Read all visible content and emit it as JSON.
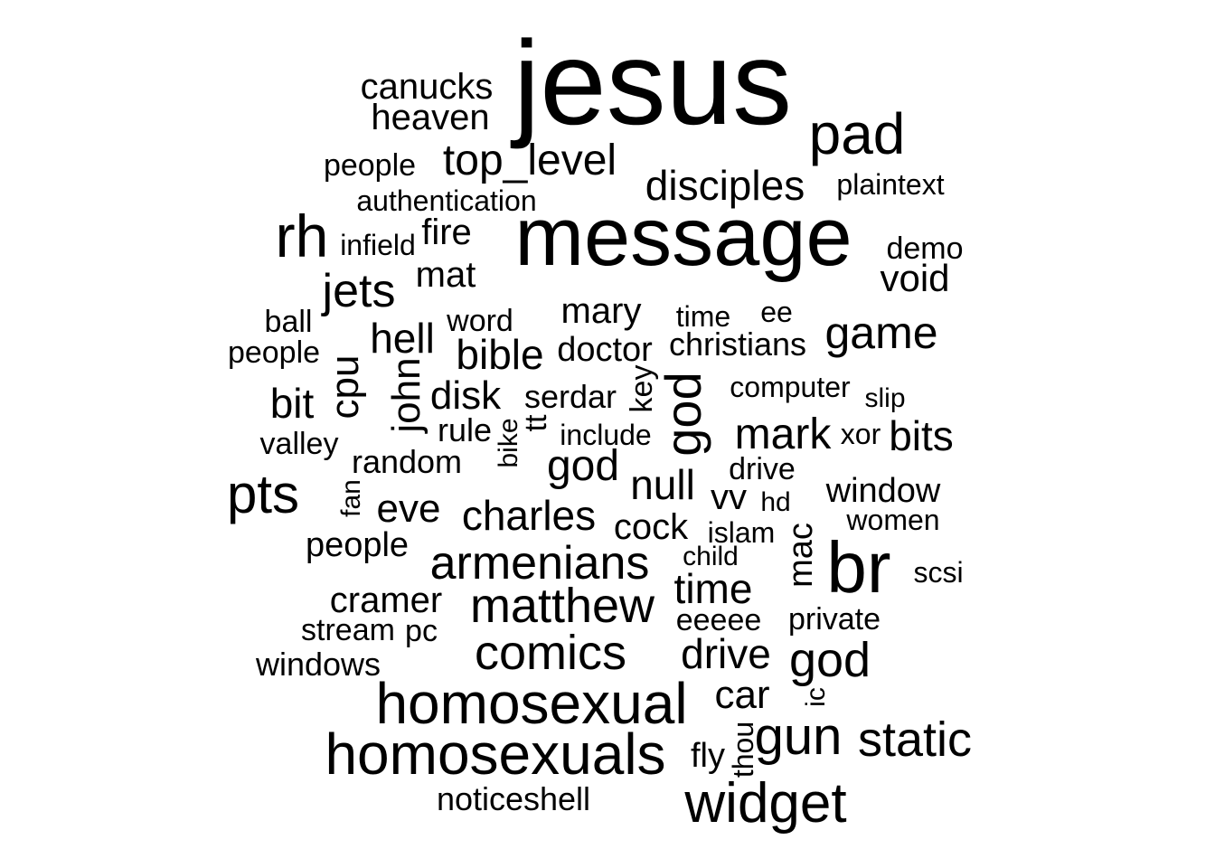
{
  "colors": {
    "background": "#ffffff",
    "text": "#000000"
  },
  "words": [
    "jesus",
    "message",
    "pad",
    "canucks",
    "heaven",
    "people",
    "top_level",
    "disciples",
    "plaintext",
    "authentication",
    "rh",
    "fire",
    "infield",
    "demo",
    "void",
    "mat",
    "jets",
    "mary",
    "time",
    "ee",
    "ball",
    "word",
    "game",
    "people",
    "hell",
    "christians",
    "doctor",
    "bible",
    "cpu",
    "john",
    "key",
    "god",
    "computer",
    "slip",
    "bit",
    "disk",
    "serdar",
    "tt",
    "rule",
    "bike",
    "mark",
    "xor",
    "bits",
    "include",
    "valley",
    "random",
    "god",
    "drive",
    "null",
    "pts",
    "fan",
    "vv",
    "hd",
    "window",
    "eve",
    "charles",
    "women",
    "cock",
    "islam",
    "mac",
    "br",
    "people",
    "child",
    "scsi",
    "armenians",
    "time",
    "cramer",
    "matthew",
    "stream",
    "pc",
    "eeeee",
    "private",
    "comics",
    "drive",
    "windows",
    "god",
    "ic",
    "homosexual",
    "car",
    "thou",
    "gun",
    "static",
    "homosexuals",
    "fly",
    "widget",
    "noticeshell"
  ]
}
